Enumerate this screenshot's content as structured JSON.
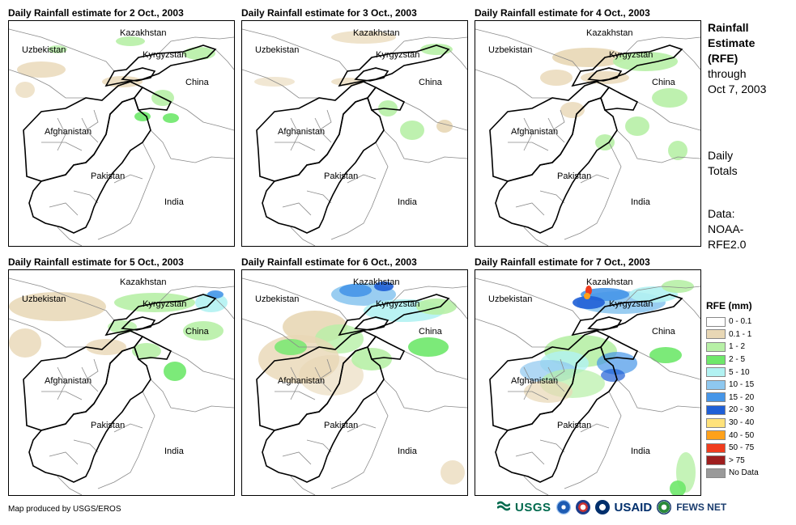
{
  "panels": [
    {
      "title": "Daily Rainfall estimate for 2 Oct., 2003"
    },
    {
      "title": "Daily Rainfall estimate for 3 Oct., 2003"
    },
    {
      "title": "Daily Rainfall estimate for 4 Oct., 2003"
    },
    {
      "title": "Daily Rainfall estimate for 5 Oct., 2003"
    },
    {
      "title": "Daily Rainfall estimate for 6 Oct., 2003"
    },
    {
      "title": "Daily Rainfall estimate for 7 Oct., 2003"
    }
  ],
  "map_labels": {
    "kazakhstan": "Kazakhstan",
    "uzbekistan": "Uzbekistan",
    "kyrgyzstan": "Kyrgyzstan",
    "china": "China",
    "afghanistan": "Afghanistan",
    "pakistan": "Pakistan",
    "india": "India"
  },
  "side": {
    "title_bold_1": "Rainfall",
    "title_bold_2": "Estimate",
    "title_bold_3": "(RFE)",
    "title_line_4": "through",
    "title_line_5": "Oct 7, 2003",
    "daily_1": "Daily",
    "daily_2": "Totals",
    "data_1": "Data:",
    "data_2": "NOAA-",
    "data_3": "RFE2.0"
  },
  "legend": {
    "title": "RFE (mm)",
    "items": [
      {
        "label": "0 - 0.1",
        "color": "#ffffff"
      },
      {
        "label": "0.1 - 1",
        "color": "#e8d7b5"
      },
      {
        "label": "1 - 2",
        "color": "#b7f0a6"
      },
      {
        "label": "2 - 5",
        "color": "#6ee86a"
      },
      {
        "label": "5 - 10",
        "color": "#b2f2f2"
      },
      {
        "label": "10 - 15",
        "color": "#8ec8f0"
      },
      {
        "label": "15 - 20",
        "color": "#4696e8"
      },
      {
        "label": "20 - 30",
        "color": "#1f5fd6"
      },
      {
        "label": "30 - 40",
        "color": "#ffe27a"
      },
      {
        "label": "40 - 50",
        "color": "#ffa11a"
      },
      {
        "label": "50 - 75",
        "color": "#f03c1e"
      },
      {
        "label": "> 75",
        "color": "#9e1e1e"
      },
      {
        "label": "No Data",
        "color": "#9a9a9a"
      }
    ]
  },
  "footer": {
    "credit": "Map produced by USGS/EROS",
    "logo_usgs": "USGS",
    "logo_usaid": "USAID",
    "logo_fews": "FEWS NET"
  }
}
